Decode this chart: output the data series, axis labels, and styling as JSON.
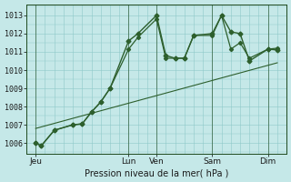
{
  "title": "Pression niveau de la mer( hPa )",
  "bg_color": "#c5e8e8",
  "grid_color": "#8ec8c8",
  "line_color": "#2d5f2d",
  "dark_line_color": "#1e4a1e",
  "ylim": [
    1005.4,
    1013.6
  ],
  "yticks": [
    1006,
    1007,
    1008,
    1009,
    1010,
    1011,
    1012,
    1013
  ],
  "xtick_labels": [
    "Jeu",
    "Lun",
    "Ven",
    "Sam",
    "Dim"
  ],
  "xtick_positions": [
    0,
    10,
    13,
    19,
    25
  ],
  "xlim": [
    -1,
    27
  ],
  "num_xgrid": 27,
  "series1_x": [
    0,
    0.6,
    2,
    4,
    5,
    6,
    7,
    8,
    10,
    11,
    13,
    14,
    15,
    16,
    17,
    19,
    20,
    21,
    22,
    23,
    25,
    26
  ],
  "series1_y": [
    1006.0,
    1005.85,
    1006.7,
    1007.0,
    1007.05,
    1007.7,
    1008.25,
    1009.0,
    1011.6,
    1012.0,
    1013.0,
    1010.8,
    1010.65,
    1010.65,
    1011.9,
    1012.0,
    1013.0,
    1012.1,
    1012.0,
    1010.5,
    1011.15,
    1011.1
  ],
  "series2_x": [
    0,
    0.6,
    2,
    4,
    5,
    6,
    7,
    8,
    10,
    11,
    13,
    14,
    15,
    16,
    17,
    19,
    20,
    21,
    22,
    23,
    25,
    26
  ],
  "series2_y": [
    1006.0,
    1005.85,
    1006.7,
    1007.0,
    1007.05,
    1007.7,
    1008.25,
    1009.0,
    1011.15,
    1011.8,
    1012.8,
    1010.65,
    1010.65,
    1010.65,
    1011.9,
    1011.9,
    1013.0,
    1011.15,
    1011.5,
    1010.65,
    1011.15,
    1011.2
  ],
  "trend_x": [
    0,
    26
  ],
  "trend_y": [
    1006.8,
    1010.4
  ],
  "marker": "D",
  "markersize": 2.5,
  "linewidth": 1.0
}
